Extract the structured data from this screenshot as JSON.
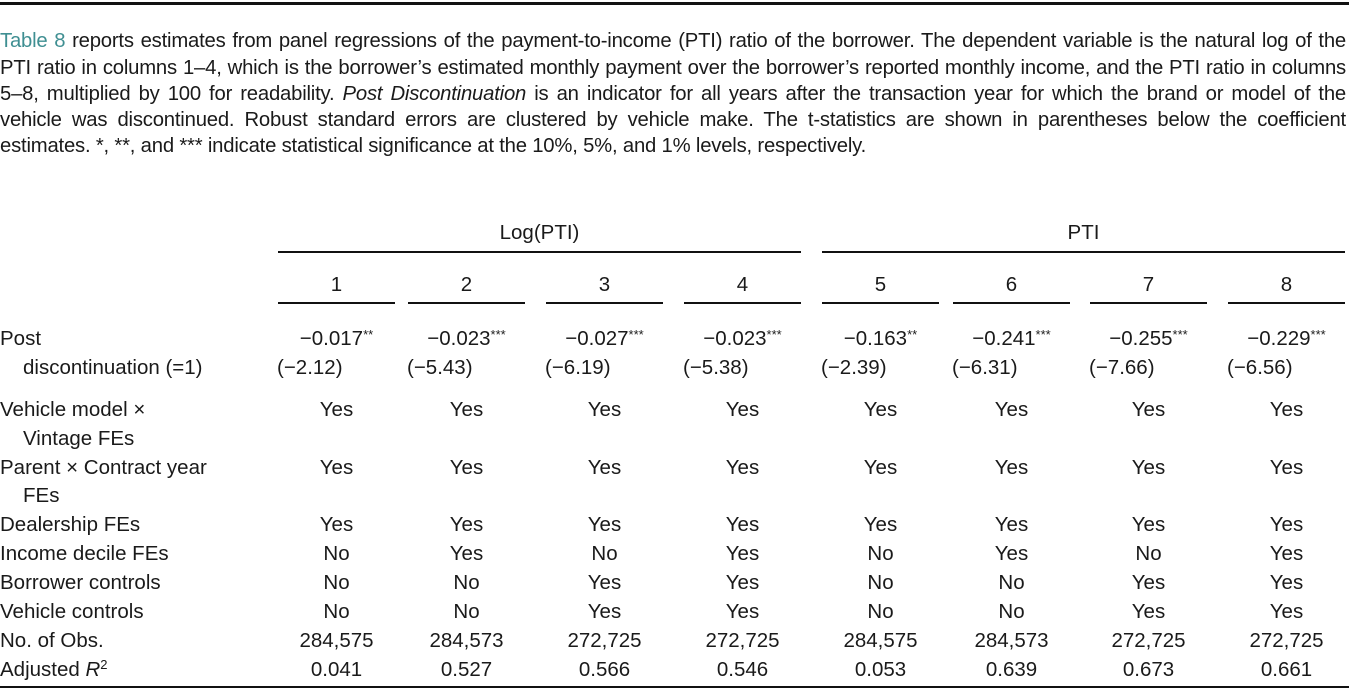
{
  "caption": {
    "ref": "Table 8",
    "text_1": " reports estimates from panel regressions of the payment-to-income (PTI) ratio of the borrower. The dependent variable is the natural log of the PTI ratio in columns 1–4, which is the borrower’s estimated monthly payment over the borrower’s reported monthly income, and the PTI ratio in columns 5–8, multiplied by 100 for readability. ",
    "italic": "Post Discontinuation",
    "text_2": " is an indicator for all years after the transaction year for which the brand or model of the vehicle was discontinued. Robust standard errors are clustered by vehicle make. The t-statistics are shown in parentheses below the coefficient estimates. *, **, and *** indicate statistical significance at the 10%, 5%, and 1% levels, respectively."
  },
  "groups": [
    {
      "label": "Log(PTI)"
    },
    {
      "label": "PTI"
    }
  ],
  "columns": [
    "1",
    "2",
    "3",
    "4",
    "5",
    "6",
    "7",
    "8"
  ],
  "coef_row": {
    "label_1": "Post",
    "label_2": "discontinuation (=1)",
    "coefs": [
      {
        "value": "−0.017",
        "stars": "**"
      },
      {
        "value": "−0.023",
        "stars": "***"
      },
      {
        "value": "−0.027",
        "stars": "***"
      },
      {
        "value": "−0.023",
        "stars": "***"
      },
      {
        "value": "−0.163",
        "stars": "**"
      },
      {
        "value": "−0.241",
        "stars": "***"
      },
      {
        "value": "−0.255",
        "stars": "***"
      },
      {
        "value": "−0.229",
        "stars": "***"
      }
    ],
    "tstats": [
      "(−2.12)",
      "(−5.43)",
      "(−6.19)",
      "(−5.38)",
      "(−2.39)",
      "(−6.31)",
      "(−7.66)",
      "(−6.56)"
    ]
  },
  "rows": [
    {
      "label_1": "Vehicle model × ",
      "label_2": "Vintage FEs",
      "values": [
        "Yes",
        "Yes",
        "Yes",
        "Yes",
        "Yes",
        "Yes",
        "Yes",
        "Yes"
      ]
    },
    {
      "label_1": "Parent × Contract year",
      "label_2": "FEs",
      "values": [
        "Yes",
        "Yes",
        "Yes",
        "Yes",
        "Yes",
        "Yes",
        "Yes",
        "Yes"
      ]
    },
    {
      "label_1": "Dealership FEs",
      "values": [
        "Yes",
        "Yes",
        "Yes",
        "Yes",
        "Yes",
        "Yes",
        "Yes",
        "Yes"
      ]
    },
    {
      "label_1": "Income decile FEs",
      "values": [
        "No",
        "Yes",
        "No",
        "Yes",
        "No",
        "Yes",
        "No",
        "Yes"
      ]
    },
    {
      "label_1": "Borrower controls",
      "values": [
        "No",
        "No",
        "Yes",
        "Yes",
        "No",
        "No",
        "Yes",
        "Yes"
      ]
    },
    {
      "label_1": "Vehicle controls",
      "values": [
        "No",
        "No",
        "Yes",
        "Yes",
        "No",
        "No",
        "Yes",
        "Yes"
      ]
    },
    {
      "label_1": "No. of Obs.",
      "values": [
        "284,575",
        "284,573",
        "272,725",
        "272,725",
        "284,575",
        "284,573",
        "272,725",
        "272,725"
      ]
    },
    {
      "label_1": "Adjusted ",
      "label_italic": "R",
      "label_sup": "2",
      "values": [
        "0.041",
        "0.527",
        "0.566",
        "0.546",
        "0.053",
        "0.639",
        "0.673",
        "0.661"
      ]
    }
  ],
  "colors": {
    "link": "#3f8f92",
    "text": "#1a1a1a",
    "rule": "#111111"
  }
}
